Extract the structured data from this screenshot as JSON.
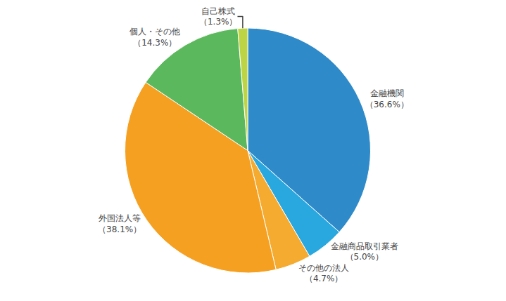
{
  "chart_data": {
    "type": "pie",
    "categories": [
      "金融機関",
      "金融商品取引業者",
      "その他の法人",
      "外国法人等",
      "個人・その他",
      "自己株式"
    ],
    "values": [
      36.6,
      5.0,
      4.7,
      38.1,
      14.3,
      1.3
    ],
    "value_labels": [
      "（36.6%）",
      "（5.0%）",
      "（4.7%）",
      "（38.1%）",
      "（14.3%）",
      "（1.3%）"
    ],
    "colors": [
      "#2e8ac8",
      "#29a8e0",
      "#f5aa30",
      "#f5a020",
      "#5cb85c",
      "#bdd444"
    ],
    "data_labels": true
  }
}
